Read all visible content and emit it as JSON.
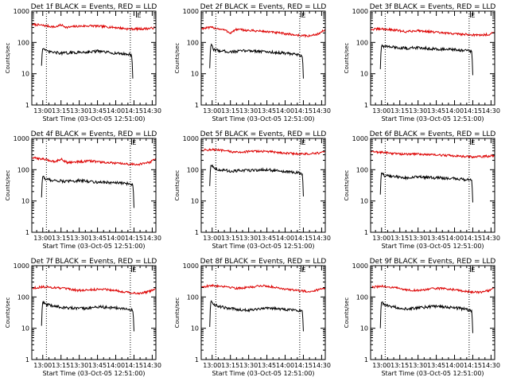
{
  "colors": {
    "events": "#000000",
    "lld": "#dd0000",
    "axis": "#000000",
    "background": "#ffffff"
  },
  "chart_data": [
    {
      "type": "line",
      "title": "Det 1f BLACK = Events, RED = LLD",
      "xlabel": "Start Time (03-Oct-05 12:51:00)",
      "ylabel": "Counts/sec",
      "y_scale": "log",
      "ylim": [
        1,
        1000
      ],
      "xlim": [
        "12:51",
        "14:33"
      ],
      "x_ticks": [
        "13:00",
        "13:15",
        "13:30",
        "13:45",
        "14:00",
        "14:15",
        "14:30"
      ],
      "y_ticks": [
        "1",
        "10",
        "100",
        "1000"
      ],
      "vlines": [
        "13:03",
        "14:12"
      ],
      "marker_text": "E",
      "marker_x": "14:17",
      "series": [
        {
          "name": "LLD",
          "color": "red",
          "x": [
            "12:51",
            "13:00",
            "13:10",
            "13:15",
            "13:20",
            "13:25",
            "13:30",
            "13:40",
            "13:50",
            "14:00",
            "14:10",
            "14:20",
            "14:28",
            "14:33"
          ],
          "values": [
            380,
            350,
            310,
            360,
            300,
            320,
            330,
            340,
            320,
            300,
            270,
            270,
            280,
            300
          ]
        },
        {
          "name": "Events",
          "color": "black",
          "x": [
            "12:59",
            "13:00",
            "13:02",
            "13:05",
            "13:15",
            "13:30",
            "13:45",
            "14:00",
            "14:10",
            "14:13",
            "14:14"
          ],
          "values": [
            18,
            70,
            55,
            50,
            45,
            48,
            52,
            45,
            42,
            40,
            7
          ]
        }
      ]
    },
    {
      "type": "line",
      "title": "Det 2f BLACK = Events, RED = LLD",
      "xlabel": "Start Time (03-Oct-05 12:51:00)",
      "ylabel": "Counts/sec",
      "y_scale": "log",
      "ylim": [
        1,
        1000
      ],
      "xlim": [
        "12:51",
        "14:33"
      ],
      "x_ticks": [
        "13:00",
        "13:15",
        "13:30",
        "13:45",
        "14:00",
        "14:15",
        "14:30"
      ],
      "y_ticks": [
        "1",
        "10",
        "100",
        "1000"
      ],
      "vlines": [
        "13:03",
        "14:12"
      ],
      "marker_text": "E",
      "marker_x": "14:13",
      "series": [
        {
          "name": "LLD",
          "color": "red",
          "x": [
            "12:51",
            "13:00",
            "13:10",
            "13:15",
            "13:20",
            "13:30",
            "13:40",
            "13:50",
            "14:00",
            "14:10",
            "14:20",
            "14:28",
            "14:33"
          ],
          "values": [
            280,
            300,
            250,
            200,
            260,
            240,
            230,
            210,
            190,
            170,
            160,
            190,
            260
          ]
        },
        {
          "name": "Events",
          "color": "black",
          "x": [
            "12:58",
            "12:59",
            "13:01",
            "13:05",
            "13:15",
            "13:30",
            "13:45",
            "14:00",
            "14:10",
            "14:14",
            "14:15"
          ],
          "values": [
            15,
            85,
            60,
            55,
            50,
            55,
            50,
            45,
            40,
            38,
            7
          ]
        }
      ]
    },
    {
      "type": "line",
      "title": "Det 3f BLACK = Events, RED = LLD",
      "xlabel": "Start Time (03-Oct-05 12:51:00)",
      "ylabel": "Counts/sec",
      "y_scale": "log",
      "ylim": [
        1,
        1000
      ],
      "xlim": [
        "12:51",
        "14:33"
      ],
      "x_ticks": [
        "13:00",
        "13:15",
        "13:30",
        "13:45",
        "14:00",
        "14:15",
        "14:30"
      ],
      "y_ticks": [
        "1",
        "10",
        "100",
        "1000"
      ],
      "vlines": [
        "13:03",
        "14:12"
      ],
      "marker_text": "E",
      "marker_x": "14:13",
      "series": [
        {
          "name": "LLD",
          "color": "red",
          "x": [
            "12:51",
            "13:00",
            "13:10",
            "13:20",
            "13:30",
            "13:40",
            "13:50",
            "14:00",
            "14:10",
            "14:20",
            "14:28",
            "14:33"
          ],
          "values": [
            260,
            270,
            250,
            220,
            240,
            220,
            200,
            190,
            180,
            170,
            180,
            210
          ]
        },
        {
          "name": "Events",
          "color": "black",
          "x": [
            "12:59",
            "13:00",
            "13:02",
            "13:10",
            "13:20",
            "13:30",
            "13:45",
            "14:00",
            "14:10",
            "14:14",
            "14:15"
          ],
          "values": [
            14,
            80,
            75,
            70,
            65,
            68,
            62,
            58,
            55,
            50,
            9
          ]
        }
      ]
    },
    {
      "type": "line",
      "title": "Det 4f BLACK = Events, RED = LLD",
      "xlabel": "Start Time (03-Oct-05 12:51:00)",
      "ylabel": "Counts/sec",
      "y_scale": "log",
      "ylim": [
        1,
        1000
      ],
      "xlim": [
        "12:51",
        "14:33"
      ],
      "x_ticks": [
        "13:00",
        "13:15",
        "13:30",
        "13:45",
        "14:00",
        "14:15",
        "14:30"
      ],
      "y_ticks": [
        "1",
        "10",
        "100",
        "1000"
      ],
      "vlines": [
        "13:03",
        "14:12"
      ],
      "marker_text": "E",
      "marker_x": "14:13",
      "series": [
        {
          "name": "LLD",
          "color": "red",
          "x": [
            "12:51",
            "13:00",
            "13:10",
            "13:15",
            "13:20",
            "13:30",
            "13:40",
            "13:50",
            "14:00",
            "14:10",
            "14:20",
            "14:28",
            "14:33"
          ],
          "values": [
            240,
            220,
            180,
            220,
            170,
            180,
            190,
            170,
            160,
            150,
            150,
            170,
            230
          ]
        },
        {
          "name": "Events",
          "color": "black",
          "x": [
            "12:59",
            "13:00",
            "13:02",
            "13:10",
            "13:20",
            "13:30",
            "13:45",
            "14:00",
            "14:10",
            "14:14",
            "14:15"
          ],
          "values": [
            13,
            65,
            50,
            45,
            42,
            45,
            40,
            38,
            36,
            34,
            6
          ]
        }
      ]
    },
    {
      "type": "line",
      "title": "Det 5f BLACK = Events, RED = LLD",
      "xlabel": "Start Time (03-Oct-05 12:51:00)",
      "ylabel": "Counts/sec",
      "y_scale": "log",
      "ylim": [
        1,
        1000
      ],
      "xlim": [
        "12:51",
        "14:33"
      ],
      "x_ticks": [
        "13:00",
        "13:15",
        "13:30",
        "13:45",
        "14:00",
        "14:15",
        "14:30"
      ],
      "y_ticks": [
        "1",
        "10",
        "100",
        "1000"
      ],
      "vlines": [
        "13:03",
        "14:12"
      ],
      "marker_text": "E",
      "marker_x": "14:13",
      "series": [
        {
          "name": "LLD",
          "color": "red",
          "x": [
            "12:51",
            "13:00",
            "13:10",
            "13:20",
            "13:30",
            "13:40",
            "13:50",
            "14:00",
            "14:10",
            "14:20",
            "14:28",
            "14:33"
          ],
          "values": [
            420,
            440,
            400,
            360,
            380,
            390,
            370,
            340,
            320,
            320,
            340,
            380
          ]
        },
        {
          "name": "Events",
          "color": "black",
          "x": [
            "12:58",
            "12:59",
            "13:01",
            "13:05",
            "13:15",
            "13:30",
            "13:45",
            "14:00",
            "14:10",
            "14:14",
            "14:15"
          ],
          "values": [
            30,
            150,
            120,
            100,
            90,
            95,
            100,
            85,
            80,
            75,
            14
          ]
        }
      ]
    },
    {
      "type": "line",
      "title": "Det 6f BLACK = Events, RED = LLD",
      "xlabel": "Start Time (03-Oct-05 12:51:00)",
      "ylabel": "Counts/sec",
      "y_scale": "log",
      "ylim": [
        1,
        1000
      ],
      "xlim": [
        "12:51",
        "14:33"
      ],
      "x_ticks": [
        "13:00",
        "13:15",
        "13:30",
        "13:45",
        "14:00",
        "14:15",
        "14:30"
      ],
      "y_ticks": [
        "1",
        "10",
        "100",
        "1000"
      ],
      "vlines": [
        "13:03",
        "14:12"
      ],
      "marker_text": "E",
      "marker_x": "14:13",
      "series": [
        {
          "name": "LLD",
          "color": "red",
          "x": [
            "12:51",
            "13:00",
            "13:10",
            "13:20",
            "13:30",
            "13:40",
            "13:50",
            "14:00",
            "14:10",
            "14:20",
            "14:28",
            "14:33"
          ],
          "values": [
            380,
            360,
            330,
            310,
            320,
            300,
            290,
            280,
            260,
            260,
            270,
            290
          ]
        },
        {
          "name": "Events",
          "color": "black",
          "x": [
            "12:59",
            "13:00",
            "13:02",
            "13:10",
            "13:20",
            "13:30",
            "13:45",
            "14:00",
            "14:10",
            "14:14",
            "14:15"
          ],
          "values": [
            16,
            85,
            65,
            60,
            55,
            58,
            55,
            52,
            48,
            45,
            9
          ]
        }
      ]
    },
    {
      "type": "line",
      "title": "Det 7f BLACK = Events, RED = LLD",
      "xlabel": "Start Time (03-Oct-05 12:51:00)",
      "ylabel": "Counts/sec",
      "y_scale": "log",
      "ylim": [
        1,
        1000
      ],
      "xlim": [
        "12:51",
        "14:33"
      ],
      "x_ticks": [
        "13:00",
        "13:15",
        "13:30",
        "13:45",
        "14:00",
        "14:15",
        "14:30"
      ],
      "y_ticks": [
        "1",
        "10",
        "100",
        "1000"
      ],
      "vlines": [
        "13:03",
        "14:12"
      ],
      "marker_text": "E",
      "marker_x": "14:13",
      "series": [
        {
          "name": "LLD",
          "color": "red",
          "x": [
            "12:51",
            "13:00",
            "13:10",
            "13:20",
            "13:30",
            "13:40",
            "13:50",
            "14:00",
            "14:10",
            "14:20",
            "14:28",
            "14:33"
          ],
          "values": [
            190,
            210,
            200,
            180,
            160,
            170,
            180,
            160,
            140,
            130,
            150,
            190
          ]
        },
        {
          "name": "Events",
          "color": "black",
          "x": [
            "12:59",
            "13:00",
            "13:02",
            "13:10",
            "13:20",
            "13:30",
            "13:45",
            "14:00",
            "14:10",
            "14:14",
            "14:15"
          ],
          "values": [
            12,
            70,
            58,
            50,
            45,
            42,
            48,
            45,
            40,
            38,
            8
          ]
        }
      ]
    },
    {
      "type": "line",
      "title": "Det 8f BLACK = Events, RED = LLD",
      "xlabel": "Start Time (03-Oct-05 12:51:00)",
      "ylabel": "Counts/sec",
      "y_scale": "log",
      "ylim": [
        1,
        1000
      ],
      "xlim": [
        "12:51",
        "14:33"
      ],
      "x_ticks": [
        "13:00",
        "13:15",
        "13:30",
        "13:45",
        "14:00",
        "14:15",
        "14:30"
      ],
      "y_ticks": [
        "1",
        "10",
        "100",
        "1000"
      ],
      "vlines": [
        "13:03",
        "14:12"
      ],
      "marker_text": "E",
      "marker_x": "14:13",
      "series": [
        {
          "name": "LLD",
          "color": "red",
          "x": [
            "12:51",
            "13:00",
            "13:10",
            "13:20",
            "13:30",
            "13:40",
            "13:50",
            "14:00",
            "14:10",
            "14:20",
            "14:28",
            "14:33"
          ],
          "values": [
            210,
            230,
            220,
            190,
            200,
            230,
            210,
            180,
            160,
            150,
            170,
            200
          ]
        },
        {
          "name": "Events",
          "color": "black",
          "x": [
            "12:58",
            "12:59",
            "13:01",
            "13:05",
            "13:15",
            "13:30",
            "13:45",
            "14:00",
            "14:10",
            "14:14",
            "14:15"
          ],
          "values": [
            11,
            75,
            60,
            50,
            42,
            38,
            45,
            40,
            38,
            35,
            8
          ]
        }
      ]
    },
    {
      "type": "line",
      "title": "Det 9f BLACK = Events, RED = LLD",
      "xlabel": "Start Time (03-Oct-05 12:51:00)",
      "ylabel": "Counts/sec",
      "y_scale": "log",
      "ylim": [
        1,
        1000
      ],
      "xlim": [
        "12:51",
        "14:33"
      ],
      "x_ticks": [
        "13:00",
        "13:15",
        "13:30",
        "13:45",
        "14:00",
        "14:15",
        "14:30"
      ],
      "y_ticks": [
        "1",
        "10",
        "100",
        "1000"
      ],
      "vlines": [
        "13:03",
        "14:12"
      ],
      "marker_text": "E",
      "marker_x": "14:13",
      "series": [
        {
          "name": "LLD",
          "color": "red",
          "x": [
            "12:51",
            "13:00",
            "13:10",
            "13:20",
            "13:30",
            "13:40",
            "13:50",
            "14:00",
            "14:10",
            "14:20",
            "14:28",
            "14:33"
          ],
          "values": [
            200,
            220,
            200,
            170,
            160,
            180,
            190,
            170,
            150,
            140,
            160,
            200
          ]
        },
        {
          "name": "Events",
          "color": "black",
          "x": [
            "12:59",
            "13:00",
            "13:02",
            "13:10",
            "13:20",
            "13:30",
            "13:45",
            "14:00",
            "14:10",
            "14:14",
            "14:15"
          ],
          "values": [
            10,
            72,
            55,
            48,
            42,
            45,
            50,
            45,
            40,
            36,
            7
          ]
        }
      ]
    }
  ]
}
